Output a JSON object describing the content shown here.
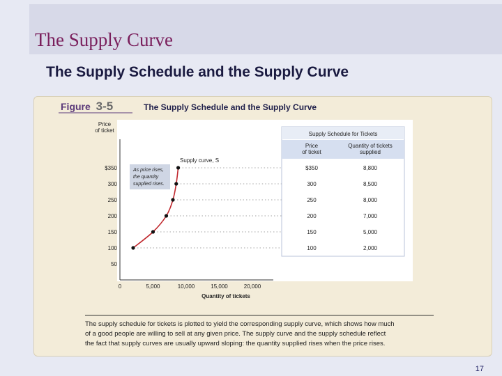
{
  "slide": {
    "title": "The Supply Curve",
    "subtitle": "The Supply Schedule and the Supply Curve",
    "page_number": "17"
  },
  "figure": {
    "label_word": "Figure",
    "label_number": "3-5",
    "title": "The Supply Schedule and the Supply Curve",
    "caption_lines": [
      "The supply schedule for tickets is plotted to yield the corresponding supply curve, which shows how much",
      "of a good people are willing to sell at any given price. The supply curve and the supply schedule reflect",
      "the fact that supply curves are usually upward sloping: the quantity supplied rises when the price rises."
    ]
  },
  "colors": {
    "curve": "#c0272d",
    "title_text": "#7a1f5c",
    "panel": "#f3ecd9",
    "callout": "#cfd6e4",
    "table_header": "#d6dff0"
  },
  "chart_data": {
    "type": "line",
    "ylabel_lines": [
      "Price",
      "of ticket"
    ],
    "xlabel": "Quantity of tickets",
    "series_label": "Supply curve, S",
    "annotation_lines": [
      "As price rises,",
      "the quantity",
      "supplied rises."
    ],
    "xlim": [
      0,
      20000
    ],
    "ylim": [
      0,
      350
    ],
    "x_ticks": [
      {
        "value": 0,
        "label": "0"
      },
      {
        "value": 5000,
        "label": "5,000"
      },
      {
        "value": 10000,
        "label": "10,000"
      },
      {
        "value": 15000,
        "label": "15,000"
      },
      {
        "value": 20000,
        "label": "20,000"
      }
    ],
    "y_ticks": [
      {
        "value": 50,
        "label": "50"
      },
      {
        "value": 100,
        "label": "100"
      },
      {
        "value": 150,
        "label": "150"
      },
      {
        "value": 200,
        "label": "200"
      },
      {
        "value": 250,
        "label": "250"
      },
      {
        "value": 300,
        "label": "300"
      },
      {
        "value": 350,
        "label": "$350"
      }
    ],
    "points": [
      {
        "x": 2000,
        "y": 100
      },
      {
        "x": 5000,
        "y": 150
      },
      {
        "x": 7000,
        "y": 200
      },
      {
        "x": 8000,
        "y": 250
      },
      {
        "x": 8500,
        "y": 300
      },
      {
        "x": 8800,
        "y": 350
      }
    ],
    "table": {
      "title": "Supply Schedule for Tickets",
      "headers": [
        [
          "Price",
          "of ticket"
        ],
        [
          "Quantity of tickets",
          "supplied"
        ]
      ],
      "rows": [
        [
          "$350",
          "8,800"
        ],
        [
          "300",
          "8,500"
        ],
        [
          "250",
          "8,000"
        ],
        [
          "200",
          "7,000"
        ],
        [
          "150",
          "5,000"
        ],
        [
          "100",
          "2,000"
        ]
      ]
    }
  }
}
